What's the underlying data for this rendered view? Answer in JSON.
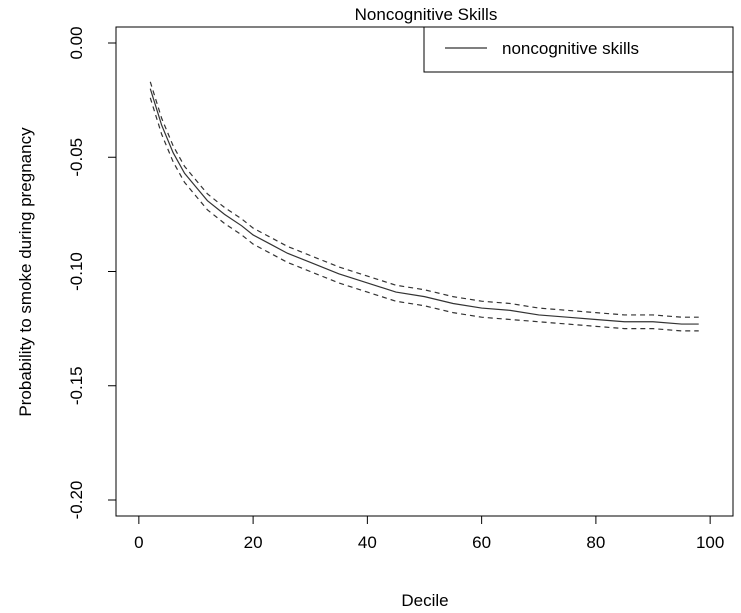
{
  "chart_data": {
    "type": "line",
    "title": "Noncognitive Skills",
    "xlabel": "Decile",
    "ylabel": "Probability to smoke during pregnancy",
    "xlim": [
      -4,
      104
    ],
    "ylim": [
      -0.207,
      0.007
    ],
    "x_ticks": [
      0,
      20,
      40,
      60,
      80,
      100
    ],
    "x_tick_labels": [
      "0",
      "20",
      "40",
      "60",
      "80",
      "100"
    ],
    "y_ticks": [
      0.0,
      -0.05,
      -0.1,
      -0.15,
      -0.2
    ],
    "y_tick_labels": [
      "0.00",
      "-0.05",
      "-0.10",
      "-0.15",
      "-0.20"
    ],
    "grid": false,
    "legend_position": "top-right",
    "legend": [
      {
        "label": "noncognitive skills",
        "series": "estimate"
      }
    ],
    "x": [
      2,
      4,
      6,
      8,
      10,
      12,
      15,
      18,
      20,
      23,
      26,
      30,
      35,
      40,
      45,
      50,
      55,
      60,
      65,
      70,
      75,
      80,
      85,
      90,
      95,
      98
    ],
    "series": [
      {
        "name": "noncognitive skills",
        "line": "solid",
        "values": [
          -0.02,
          -0.036,
          -0.048,
          -0.057,
          -0.063,
          -0.069,
          -0.075,
          -0.08,
          -0.084,
          -0.088,
          -0.092,
          -0.096,
          -0.101,
          -0.105,
          -0.109,
          -0.111,
          -0.114,
          -0.116,
          -0.117,
          -0.119,
          -0.12,
          -0.121,
          -0.122,
          -0.122,
          -0.123,
          -0.123
        ]
      },
      {
        "line": "dashed",
        "values": [
          -0.017,
          -0.033,
          -0.045,
          -0.054,
          -0.06,
          -0.066,
          -0.072,
          -0.077,
          -0.081,
          -0.085,
          -0.089,
          -0.093,
          -0.098,
          -0.102,
          -0.106,
          -0.108,
          -0.111,
          -0.113,
          -0.114,
          -0.116,
          -0.117,
          -0.118,
          -0.119,
          -0.119,
          -0.12,
          -0.12
        ]
      },
      {
        "line": "dashed",
        "values": [
          -0.024,
          -0.04,
          -0.052,
          -0.061,
          -0.067,
          -0.073,
          -0.079,
          -0.084,
          -0.088,
          -0.092,
          -0.096,
          -0.1,
          -0.105,
          -0.109,
          -0.113,
          -0.115,
          -0.118,
          -0.12,
          -0.121,
          -0.122,
          -0.123,
          -0.124,
          -0.125,
          -0.125,
          -0.126,
          -0.126
        ]
      }
    ]
  }
}
